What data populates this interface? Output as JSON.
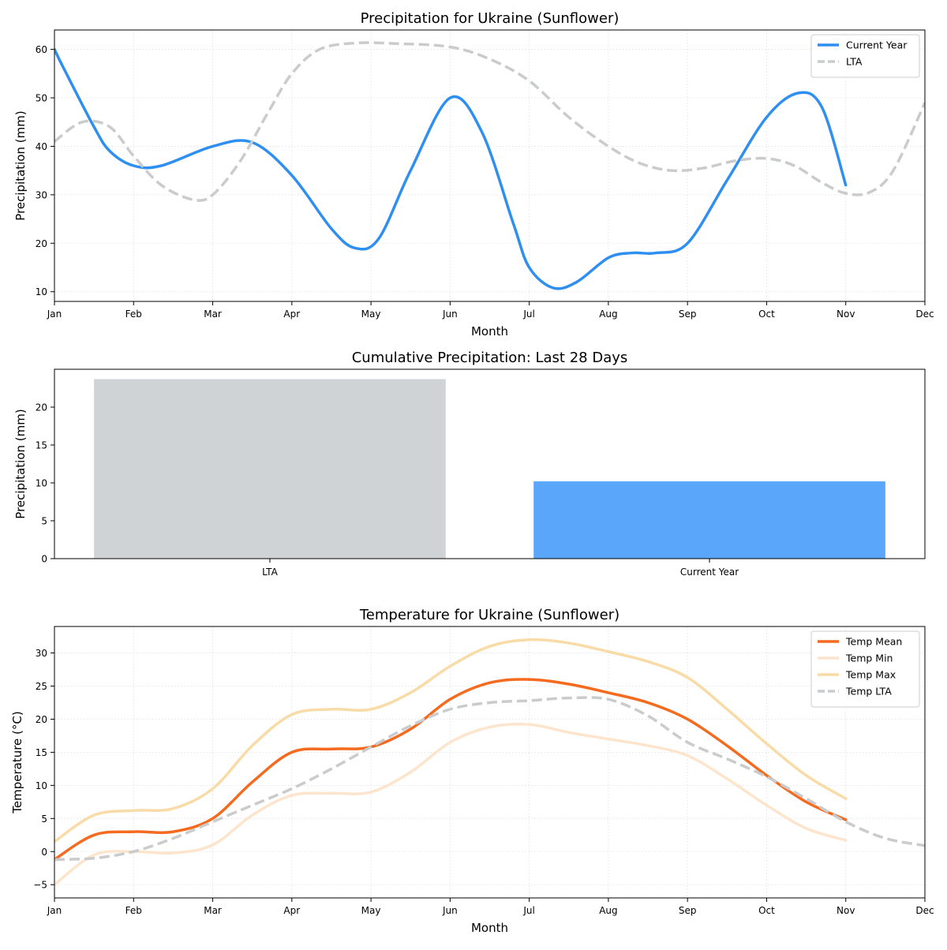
{
  "chart_data": [
    {
      "type": "line",
      "title": "Precipitation for Ukraine (Sunflower)",
      "xlabel": "Month",
      "ylabel": "Precipitation (mm)",
      "categories": [
        "Jan",
        "Feb",
        "Mar",
        "Apr",
        "May",
        "Jun",
        "Jul",
        "Aug",
        "Sep",
        "Oct",
        "Nov",
        "Dec"
      ],
      "ylim": [
        8,
        64
      ],
      "yticks": [
        10,
        20,
        30,
        40,
        50,
        60
      ],
      "grid": true,
      "legend_position": "top-right",
      "series": [
        {
          "name": "Current Year",
          "color": "#2f8ff0",
          "dash": "solid",
          "x": [
            0,
            0.12,
            0.5,
            0.7,
            1.0,
            1.35,
            2.0,
            2.5,
            3.0,
            3.5,
            3.8,
            4.1,
            4.5,
            5.0,
            5.4,
            5.8,
            6.0,
            6.3,
            6.6,
            7.0,
            7.3,
            7.6,
            8.0,
            8.5,
            9.0,
            9.4,
            9.7,
            10.0
          ],
          "values": [
            60,
            56,
            44,
            39,
            36,
            36,
            40,
            40.8,
            34,
            23,
            19,
            21,
            35,
            50,
            43,
            24,
            15,
            10.8,
            12,
            17,
            18,
            18,
            20,
            33,
            46,
            51,
            48,
            32
          ]
        },
        {
          "name": "LTA",
          "color": "#c9cbcd",
          "dash": "dashed",
          "x": [
            0,
            0.35,
            0.7,
            1.0,
            1.35,
            1.75,
            2.0,
            2.35,
            2.7,
            3.0,
            3.35,
            3.8,
            4.3,
            5.0,
            5.5,
            6.0,
            6.5,
            7.0,
            7.4,
            7.8,
            8.2,
            8.6,
            9.0,
            9.35,
            9.7,
            10.0,
            10.3,
            10.6,
            11.0
          ],
          "values": [
            41,
            45,
            44,
            38,
            32,
            29,
            30,
            37,
            47,
            55,
            60,
            61.3,
            61.2,
            60.5,
            58,
            53.5,
            46,
            40,
            36.5,
            35,
            35.5,
            37,
            37.5,
            36,
            32.5,
            30.3,
            30.5,
            35,
            49
          ]
        }
      ]
    },
    {
      "type": "bar",
      "title": "Cumulative Precipitation: Last 28 Days",
      "xlabel": "",
      "ylabel": "Precipitation (mm)",
      "categories": [
        "LTA",
        "Current Year"
      ],
      "values": [
        23.7,
        10.2
      ],
      "colors": [
        "#d0d3d6",
        "#5aa6fa"
      ],
      "ylim": [
        0,
        25
      ],
      "yticks": [
        0,
        5,
        10,
        15,
        20
      ],
      "grid": false
    },
    {
      "type": "line",
      "title": "Temperature for Ukraine (Sunflower)",
      "xlabel": "Month",
      "ylabel": "Temperature (°C)",
      "categories": [
        "Jan",
        "Feb",
        "Mar",
        "Apr",
        "May",
        "Jun",
        "Jul",
        "Aug",
        "Sep",
        "Oct",
        "Nov",
        "Dec"
      ],
      "ylim": [
        -7,
        34
      ],
      "yticks": [
        -5,
        0,
        5,
        10,
        15,
        20,
        25,
        30
      ],
      "grid": true,
      "legend_position": "top-right",
      "series": [
        {
          "name": "Temp Mean",
          "color": "#f46a1e",
          "dash": "solid",
          "x": [
            0,
            0.5,
            1.0,
            1.5,
            2.0,
            2.5,
            3.0,
            3.5,
            4.0,
            4.5,
            5.0,
            5.5,
            6.0,
            6.5,
            7.0,
            7.5,
            8.0,
            8.5,
            9.0,
            9.5,
            10.0
          ],
          "values": [
            -1.2,
            2.5,
            3.0,
            3.0,
            5.0,
            10.5,
            15.0,
            15.5,
            15.8,
            18.5,
            23.0,
            25.5,
            26.0,
            25.3,
            24.0,
            22.5,
            20.0,
            16.0,
            11.5,
            7.5,
            4.8
          ]
        },
        {
          "name": "Temp Min",
          "color": "#fde4cc",
          "dash": "solid",
          "x": [
            0,
            0.5,
            1.0,
            1.5,
            2.0,
            2.5,
            3.0,
            3.5,
            4.0,
            4.5,
            5.0,
            5.5,
            6.0,
            6.5,
            7.0,
            7.5,
            8.0,
            8.5,
            9.0,
            9.5,
            10.0
          ],
          "values": [
            -5.0,
            -0.5,
            0.0,
            -0.2,
            1.0,
            5.5,
            8.5,
            8.8,
            9.0,
            12.0,
            16.5,
            18.8,
            19.2,
            18.0,
            17.0,
            16.0,
            14.5,
            11.0,
            7.0,
            3.5,
            1.7
          ]
        },
        {
          "name": "Temp Max",
          "color": "#f8dba6",
          "dash": "solid",
          "x": [
            0,
            0.5,
            1.0,
            1.5,
            2.0,
            2.5,
            3.0,
            3.5,
            4.0,
            4.5,
            5.0,
            5.5,
            6.0,
            6.5,
            7.0,
            7.5,
            8.0,
            8.5,
            9.0,
            9.5,
            10.0
          ],
          "values": [
            1.5,
            5.5,
            6.2,
            6.5,
            9.5,
            16.0,
            20.7,
            21.5,
            21.5,
            24.0,
            28.0,
            31.0,
            32.0,
            31.5,
            30.2,
            28.7,
            26.3,
            21.5,
            16.3,
            11.5,
            8.0
          ]
        },
        {
          "name": "Temp LTA",
          "color": "#c9cbcd",
          "dash": "dashed",
          "x": [
            0,
            0.5,
            1.0,
            1.5,
            2.0,
            2.5,
            3.0,
            3.5,
            4.0,
            4.5,
            5.0,
            5.5,
            6.0,
            6.5,
            7.0,
            7.5,
            8.0,
            8.5,
            9.0,
            9.5,
            10.0,
            10.5,
            11.0
          ],
          "values": [
            -1.2,
            -1.0,
            0.0,
            2.0,
            4.5,
            7.0,
            9.5,
            12.5,
            15.8,
            19.0,
            21.5,
            22.5,
            22.8,
            23.2,
            23.0,
            20.5,
            16.5,
            14.0,
            11.3,
            8.0,
            4.5,
            2.0,
            0.9
          ]
        }
      ]
    }
  ]
}
